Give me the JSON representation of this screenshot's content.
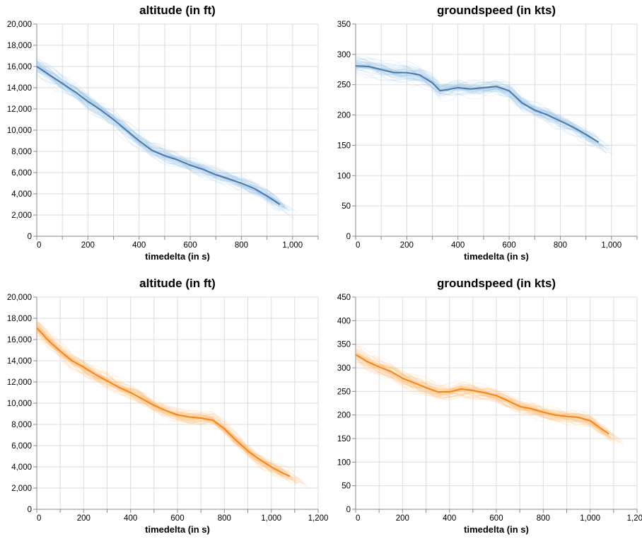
{
  "colors": {
    "blue_bg": "#9ecae9",
    "blue_mean": "#4c78a8",
    "orange_bg": "#ffbf79",
    "orange_mean": "#f58518",
    "grid": "#dddddd",
    "axis": "#888888"
  },
  "chart_data": [
    {
      "type": "line",
      "title": "altitude (in ft)",
      "xlabel": "timedelta (in s)",
      "ylabel": "",
      "xlim": [
        0,
        1100
      ],
      "ylim": [
        0,
        20000
      ],
      "x_ticks": [
        0,
        200,
        400,
        600,
        800,
        1000
      ],
      "y_ticks": [
        0,
        2000,
        4000,
        6000,
        8000,
        10000,
        12000,
        14000,
        16000,
        18000,
        20000
      ],
      "tick_format": "comma",
      "color": "blue",
      "grid": true,
      "background_flights": 60,
      "series": [
        {
          "role": "mean",
          "x": [
            0,
            50,
            100,
            150,
            200,
            250,
            300,
            350,
            400,
            450,
            500,
            550,
            600,
            650,
            700,
            750,
            800,
            850,
            900,
            950
          ],
          "y": [
            16000,
            15200,
            14400,
            13600,
            12700,
            11900,
            11000,
            10000,
            9000,
            8100,
            7600,
            7200,
            6700,
            6300,
            5800,
            5400,
            5000,
            4500,
            3800,
            3000
          ]
        }
      ]
    },
    {
      "type": "line",
      "title": "groundspeed (in kts)",
      "xlabel": "timedelta (in s)",
      "ylabel": "",
      "xlim": [
        0,
        1100
      ],
      "ylim": [
        0,
        350
      ],
      "x_ticks": [
        0,
        200,
        400,
        600,
        800,
        1000
      ],
      "y_ticks": [
        0,
        50,
        100,
        150,
        200,
        250,
        300,
        350
      ],
      "tick_format": "comma",
      "color": "blue",
      "grid": true,
      "background_flights": 60,
      "series": [
        {
          "role": "mean",
          "x": [
            0,
            50,
            100,
            150,
            200,
            250,
            300,
            330,
            360,
            400,
            450,
            500,
            550,
            600,
            650,
            700,
            750,
            800,
            850,
            900,
            950
          ],
          "y": [
            281,
            280,
            275,
            270,
            270,
            266,
            253,
            240,
            242,
            245,
            243,
            245,
            247,
            240,
            220,
            208,
            200,
            190,
            180,
            168,
            155
          ]
        }
      ]
    },
    {
      "type": "line",
      "title": "altitude (in ft)",
      "xlabel": "timedelta (in s)",
      "ylabel": "",
      "xlim": [
        0,
        1200
      ],
      "ylim": [
        0,
        20000
      ],
      "x_ticks": [
        0,
        200,
        400,
        600,
        800,
        1000,
        1200
      ],
      "y_ticks": [
        0,
        2000,
        4000,
        6000,
        8000,
        10000,
        12000,
        14000,
        16000,
        18000,
        20000
      ],
      "tick_format": "comma",
      "color": "orange",
      "grid": true,
      "background_flights": 60,
      "series": [
        {
          "role": "mean",
          "x": [
            0,
            50,
            100,
            150,
            200,
            250,
            300,
            350,
            400,
            450,
            500,
            550,
            600,
            650,
            700,
            750,
            800,
            850,
            900,
            950,
            1000,
            1050,
            1080
          ],
          "y": [
            17100,
            15900,
            14900,
            14000,
            13400,
            12700,
            12100,
            11500,
            11000,
            10400,
            9800,
            9300,
            8900,
            8700,
            8600,
            8400,
            7600,
            6500,
            5500,
            4700,
            4000,
            3400,
            3100
          ]
        }
      ]
    },
    {
      "type": "line",
      "title": "groundspeed (in kts)",
      "xlabel": "timedelta (in s)",
      "ylabel": "",
      "xlim": [
        0,
        1200
      ],
      "ylim": [
        0,
        450
      ],
      "x_ticks": [
        0,
        200,
        400,
        600,
        800,
        1000,
        1200
      ],
      "y_ticks": [
        0,
        50,
        100,
        150,
        200,
        250,
        300,
        350,
        400,
        450
      ],
      "tick_format": "comma",
      "color": "orange",
      "grid": true,
      "background_flights": 60,
      "series": [
        {
          "role": "mean",
          "x": [
            0,
            50,
            100,
            150,
            200,
            250,
            300,
            350,
            400,
            450,
            500,
            550,
            600,
            650,
            700,
            750,
            800,
            850,
            900,
            950,
            1000,
            1050,
            1080
          ],
          "y": [
            328,
            313,
            302,
            292,
            278,
            268,
            258,
            249,
            249,
            255,
            252,
            247,
            241,
            230,
            218,
            213,
            206,
            200,
            197,
            195,
            188,
            170,
            160
          ]
        }
      ]
    }
  ]
}
